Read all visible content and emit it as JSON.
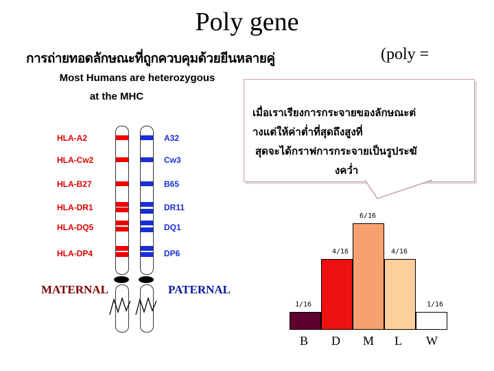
{
  "title": "Poly gene",
  "subtitle": "การถ่ายทอดลักษณะที่ถูกควบคุมด้วยยีนหลายคู่",
  "poly_note": "(poly =",
  "mhc_figure": {
    "heading_line1": "Most Humans  are heterozygous",
    "heading_line2": "at the MHC",
    "maternal_alleles": [
      "HLA-A2",
      "HLA-Cw2",
      "HLA-B27",
      "HLA-DR1",
      "HLA-DQ5",
      "HLA-DP4"
    ],
    "paternal_alleles": [
      "A32",
      "Cw3",
      "B65",
      "DR11",
      "DQ1",
      "DP6"
    ],
    "maternal_label": "MATERNAL",
    "paternal_label": "PATERNAL",
    "colors": {
      "maternal": "#e00000",
      "paternal": "#1c2ed8"
    }
  },
  "callout": {
    "lines": [
      "เมื่อเราเรียงการกระจายของลักษณะต่",
      "างแต่ให้ค่าต่ำที่สุดถึงสูงที่",
      "สุดจะได้กราฟการกระจายเป็นรูประฆั",
      "งคว่ำ"
    ]
  },
  "chart_data": {
    "type": "bar",
    "title": "",
    "categories": [
      "B",
      "D",
      "M",
      "L",
      "W"
    ],
    "values": [
      1,
      4,
      6,
      4,
      1
    ],
    "value_labels": [
      "1/16",
      "4/16",
      "6/16",
      "4/16",
      "1/16"
    ],
    "denominator": 16,
    "colors": [
      "#5e0030",
      "#ee1111",
      "#f7a070",
      "#fccf9c",
      "#ffffff"
    ],
    "ylim": [
      0,
      6
    ]
  }
}
